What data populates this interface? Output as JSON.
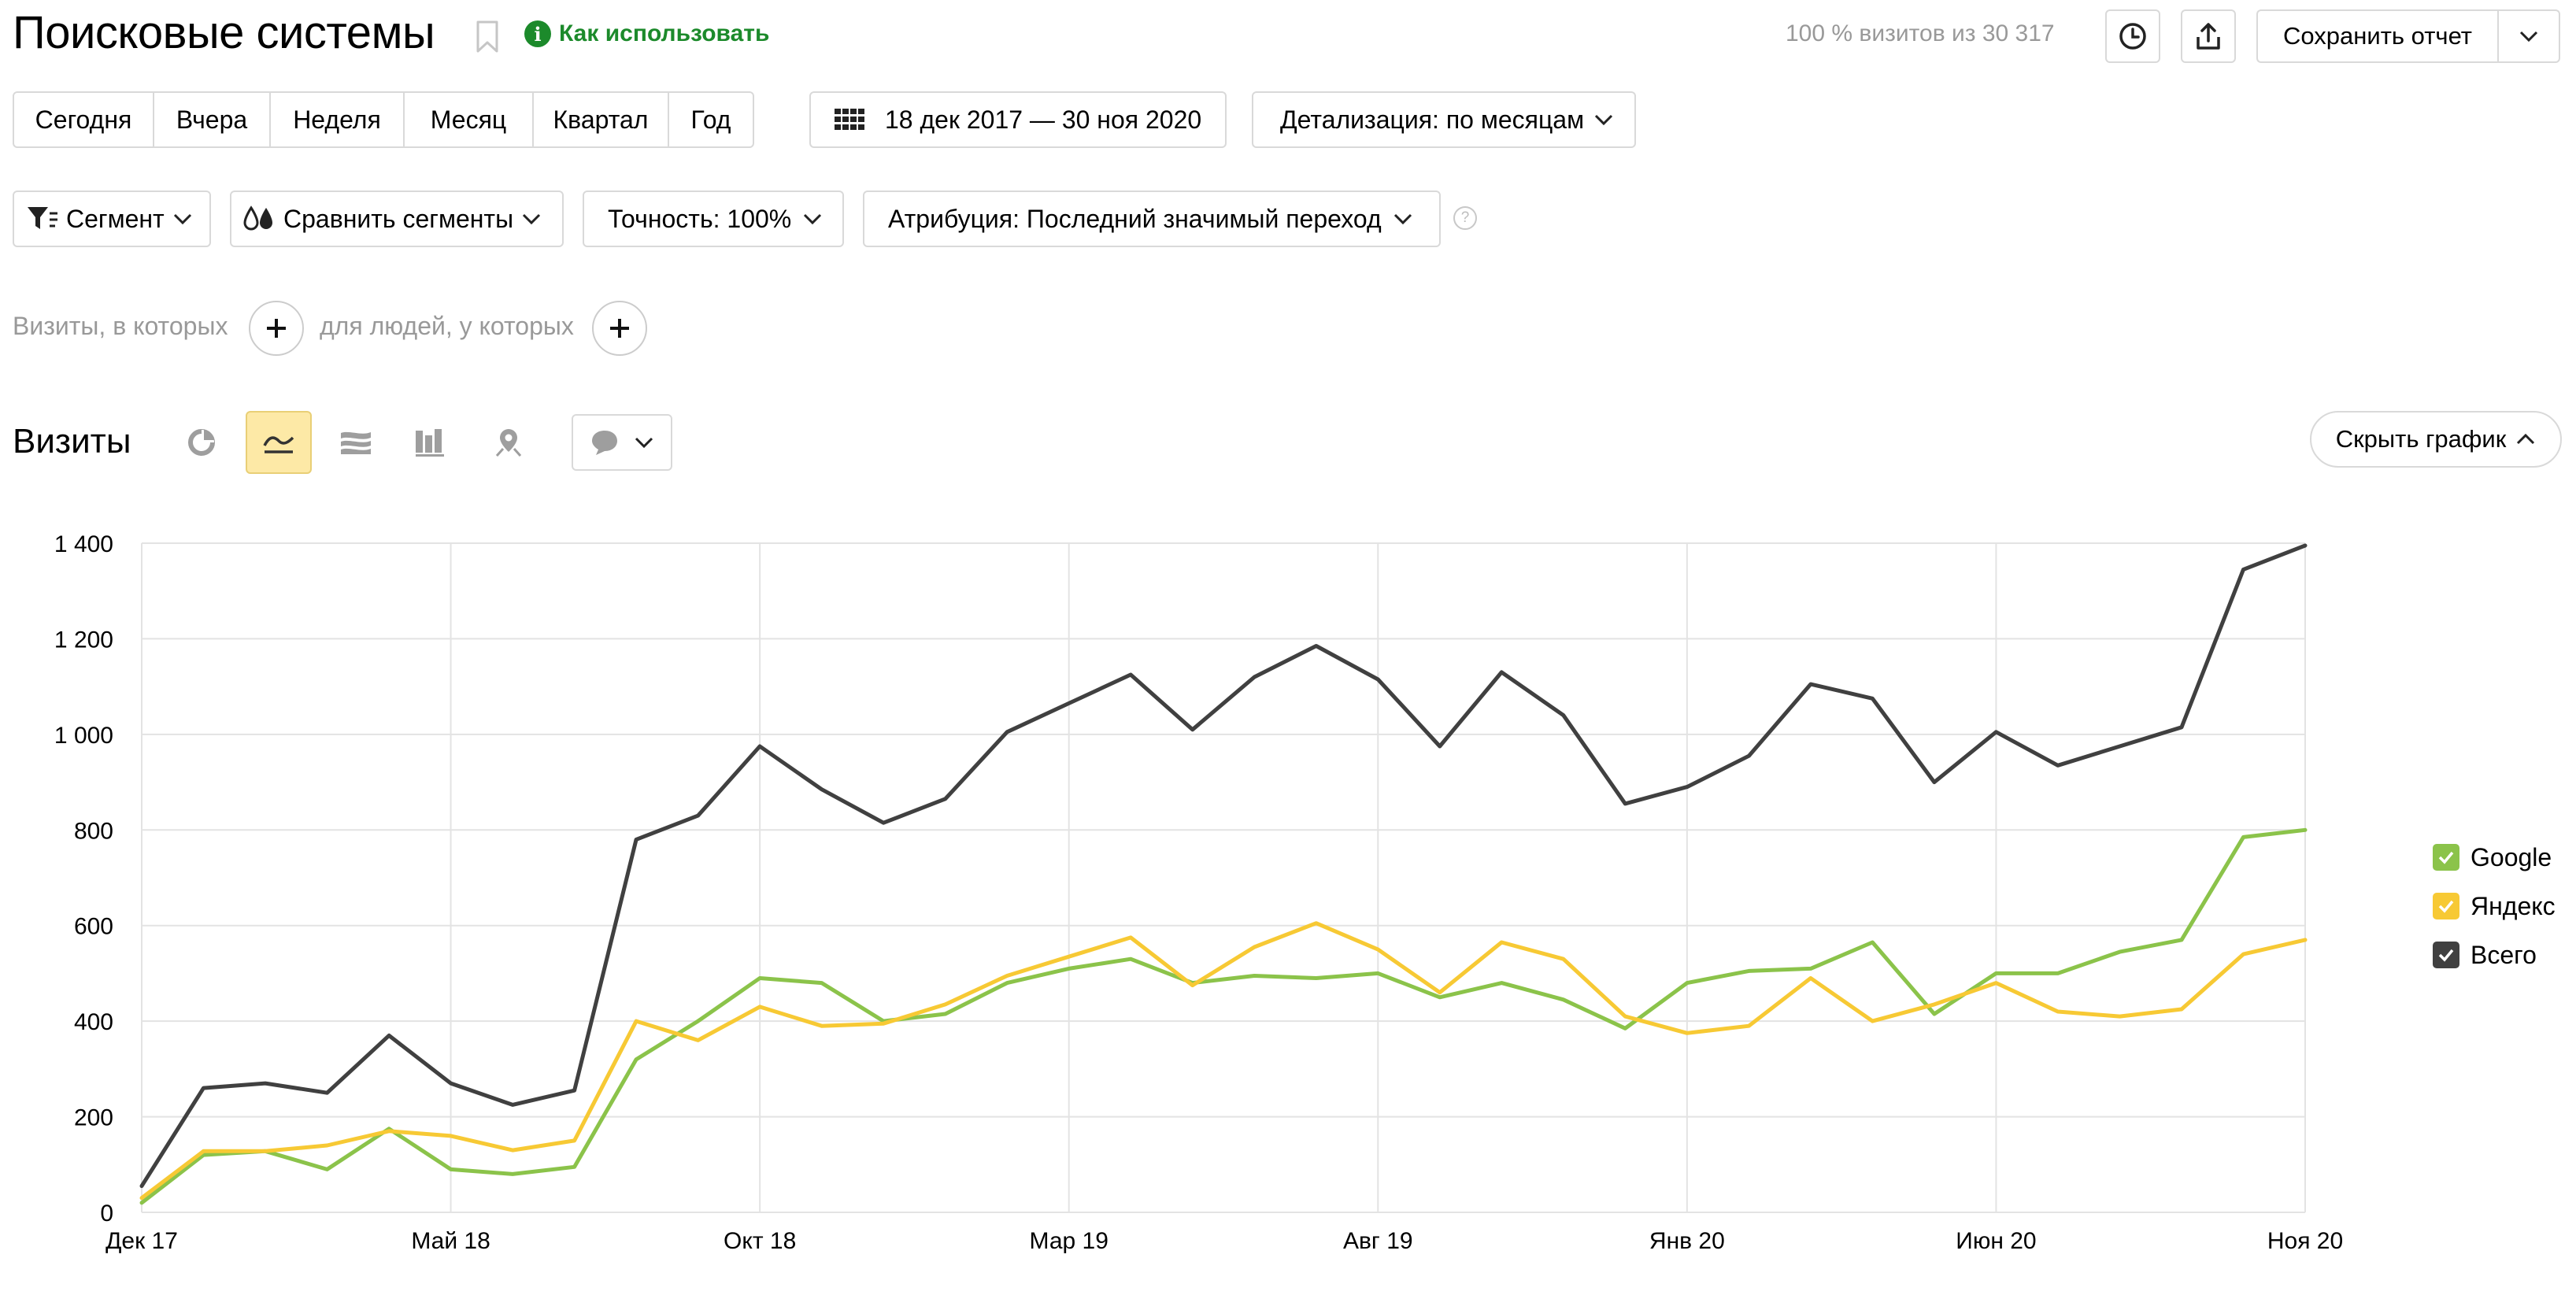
{
  "header": {
    "title": "Поисковые системы",
    "howto_label": "Как использовать",
    "visits_note": "100 % визитов из 30 317",
    "save_label": "Сохранить отчет"
  },
  "period": {
    "buttons": [
      "Сегодня",
      "Вчера",
      "Неделя",
      "Месяц",
      "Квартал",
      "Год"
    ],
    "date_range": "18 дек 2017 — 30 ноя 2020",
    "detail": "Детализация: по месяцам"
  },
  "filters": {
    "segment": "Сегмент",
    "compare": "Сравнить сегменты",
    "accuracy": "Точность: 100%",
    "attribution": "Атрибуция: Последний значимый переход",
    "help": "?"
  },
  "conditions": {
    "visits_label": "Визиты, в которых",
    "people_label": "для людей, у которых"
  },
  "section": {
    "title": "Визиты",
    "hide_chart": "Скрыть график"
  },
  "colors": {
    "google": "#8bc34a",
    "yandex": "#f7c934",
    "total": "#404040",
    "accent": "#fde9a6",
    "link": "#1c8a2b"
  },
  "icons": [
    "bookmark-icon",
    "info-icon",
    "history-icon",
    "share-icon",
    "chevron-down-icon",
    "calendar-icon",
    "filter-icon",
    "compare-icon",
    "plus-icon",
    "pie-chart-icon",
    "line-chart-icon",
    "area-chart-icon",
    "bar-chart-icon",
    "map-icon",
    "comment-icon",
    "chevron-up-icon",
    "check-icon"
  ],
  "chart_data": {
    "type": "line",
    "x": [
      "Дек 17",
      "Янв 18",
      "Фев 18",
      "Мар 18",
      "Апр 18",
      "Май 18",
      "Июн 18",
      "Июл 18",
      "Авг 18",
      "Сен 18",
      "Окт 18",
      "Ноя 18",
      "Дек 18",
      "Янв 19",
      "Фев 19",
      "Мар 19",
      "Апр 19",
      "Май 19",
      "Июн 19",
      "Июл 19",
      "Авг 19",
      "Сен 19",
      "Окт 19",
      "Ноя 19",
      "Дек 19",
      "Янв 20",
      "Фев 20",
      "Мар 20",
      "Апр 20",
      "Май 20",
      "Июн 20",
      "Июл 20",
      "Авг 20",
      "Сен 20",
      "Окт 20",
      "Ноя 20"
    ],
    "x_tick_labels": [
      "Дек 17",
      "Май 18",
      "Окт 18",
      "Мар 19",
      "Авг 19",
      "Янв 20",
      "Июн 20",
      "Ноя 20"
    ],
    "x_tick_index": [
      0,
      5,
      10,
      15,
      20,
      25,
      30,
      35
    ],
    "y_ticks": [
      "0",
      "200",
      "400",
      "600",
      "800",
      "1 000",
      "1 200",
      "1 400"
    ],
    "ylim": [
      0,
      1400
    ],
    "grid": true,
    "legend_position": "right",
    "series": [
      {
        "name": "Google",
        "color": "#8bc34a",
        "values": [
          20,
          120,
          128,
          90,
          175,
          90,
          80,
          95,
          320,
          400,
          490,
          480,
          400,
          415,
          480,
          510,
          530,
          480,
          495,
          490,
          500,
          450,
          480,
          445,
          385,
          480,
          505,
          510,
          565,
          415,
          500,
          500,
          545,
          570,
          785,
          800
        ]
      },
      {
        "name": "Яндекс",
        "color": "#f7c934",
        "values": [
          30,
          128,
          128,
          140,
          170,
          160,
          130,
          150,
          400,
          360,
          430,
          390,
          395,
          435,
          495,
          535,
          575,
          475,
          555,
          605,
          550,
          460,
          565,
          530,
          410,
          375,
          390,
          490,
          400,
          435,
          480,
          420,
          410,
          425,
          540,
          570
        ]
      },
      {
        "name": "Всего",
        "color": "#404040",
        "values": [
          55,
          260,
          270,
          250,
          370,
          270,
          225,
          255,
          780,
          830,
          975,
          885,
          815,
          865,
          1005,
          1065,
          1125,
          1010,
          1120,
          1185,
          1115,
          975,
          1130,
          1040,
          855,
          890,
          955,
          1105,
          1075,
          900,
          1005,
          935,
          975,
          1015,
          1345,
          1395
        ]
      }
    ]
  }
}
